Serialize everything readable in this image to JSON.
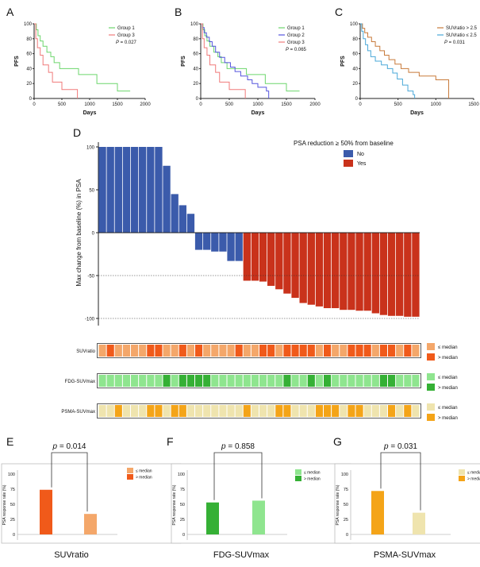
{
  "chart_data": [
    {
      "panel": "A",
      "type": "line",
      "xlabel": "Days",
      "ylabel": "PFS",
      "xlim": [
        0,
        2000
      ],
      "ylim": [
        0,
        100
      ],
      "xticks": [
        0,
        500,
        1000,
        1500,
        2000
      ],
      "yticks": [
        0,
        20,
        40,
        60,
        80,
        100
      ],
      "annotation": "P = 0.027",
      "legend_position": "top-right",
      "series": [
        {
          "name": "Group 1",
          "color": "#6cd66c",
          "x": [
            0,
            40,
            70,
            110,
            160,
            230,
            300,
            360,
            460,
            800,
            1130,
            1500,
            1730
          ],
          "y": [
            100,
            92,
            84,
            77,
            70,
            62,
            56,
            48,
            40,
            32,
            20,
            10,
            10
          ]
        },
        {
          "name": "Group 3",
          "color": "#f07a7a",
          "x": [
            0,
            30,
            60,
            110,
            160,
            260,
            330,
            500,
            740,
            780
          ],
          "y": [
            100,
            80,
            68,
            58,
            45,
            35,
            22,
            12,
            12,
            0
          ]
        }
      ]
    },
    {
      "panel": "B",
      "type": "line",
      "xlabel": "Days",
      "ylabel": "PFS",
      "xlim": [
        0,
        2000
      ],
      "ylim": [
        0,
        100
      ],
      "xticks": [
        0,
        500,
        1000,
        1500,
        2000
      ],
      "yticks": [
        0,
        20,
        40,
        60,
        80,
        100
      ],
      "annotation": "P = 0.065",
      "legend_position": "top-right",
      "series": [
        {
          "name": "Group 1",
          "color": "#6cd66c",
          "x": [
            0,
            40,
            70,
            110,
            160,
            230,
            300,
            360,
            460,
            800,
            1130,
            1500,
            1730
          ],
          "y": [
            100,
            92,
            84,
            77,
            70,
            62,
            56,
            48,
            40,
            32,
            20,
            10,
            10
          ]
        },
        {
          "name": "Group 2",
          "color": "#5555dd",
          "x": [
            0,
            30,
            60,
            100,
            150,
            200,
            260,
            330,
            420,
            520,
            600,
            700,
            820,
            900,
            1000,
            1150,
            1190
          ],
          "y": [
            100,
            95,
            88,
            82,
            76,
            70,
            62,
            55,
            48,
            42,
            36,
            30,
            25,
            20,
            15,
            10,
            0
          ]
        },
        {
          "name": "Group 3",
          "color": "#f07a7a",
          "x": [
            0,
            30,
            60,
            110,
            160,
            260,
            330,
            500,
            740,
            780
          ],
          "y": [
            100,
            80,
            68,
            58,
            45,
            35,
            22,
            12,
            12,
            0
          ]
        }
      ]
    },
    {
      "panel": "C",
      "type": "line",
      "xlabel": "Days",
      "ylabel": "PFS",
      "xlim": [
        0,
        1500
      ],
      "ylim": [
        0,
        100
      ],
      "xticks": [
        0,
        500,
        1000,
        1500
      ],
      "yticks": [
        0,
        20,
        40,
        60,
        80,
        100
      ],
      "annotation": "P = 0.031",
      "legend_position": "top-right",
      "series": [
        {
          "name": "SUVratio > 2.5",
          "color": "#c87a3a",
          "x": [
            0,
            30,
            60,
            100,
            150,
            200,
            260,
            320,
            380,
            460,
            540,
            640,
            780,
            1000,
            1160,
            1170
          ],
          "y": [
            100,
            94,
            88,
            82,
            76,
            70,
            64,
            58,
            52,
            46,
            40,
            35,
            30,
            25,
            25,
            0
          ]
        },
        {
          "name": "SUVratio ≤ 2.5",
          "color": "#4aa8d8",
          "x": [
            0,
            20,
            40,
            70,
            100,
            140,
            200,
            280,
            360,
            430,
            490,
            560,
            630,
            700,
            720
          ],
          "y": [
            100,
            90,
            80,
            72,
            64,
            56,
            50,
            45,
            40,
            34,
            26,
            18,
            10,
            5,
            0
          ]
        }
      ]
    },
    {
      "panel": "D",
      "type": "bar",
      "ylabel": "Max change from baseline (%) in PSA",
      "ylim": [
        -100,
        100
      ],
      "yticks": [
        -100,
        -50,
        0,
        50,
        100
      ],
      "reference_lines": [
        -50,
        -100
      ],
      "legend_title": "PSA reduction ≥ 50% from baseline",
      "legend_position": "top-right",
      "legend": [
        {
          "name": "No",
          "color": "#3b5bab"
        },
        {
          "name": "Yes",
          "color": "#c9321b"
        }
      ],
      "values": [
        100,
        100,
        100,
        100,
        100,
        100,
        100,
        100,
        78,
        45,
        32,
        22,
        -20,
        -20,
        -22,
        -22,
        -33,
        -33,
        -56,
        -56,
        -57,
        -62,
        -66,
        -71,
        -76,
        -82,
        -84,
        -86,
        -88,
        -88,
        -90,
        -90,
        -91,
        -91,
        -94,
        -96,
        -97,
        -97,
        -98,
        -98
      ],
      "groups": [
        "No",
        "No",
        "No",
        "No",
        "No",
        "No",
        "No",
        "No",
        "No",
        "No",
        "No",
        "No",
        "No",
        "No",
        "No",
        "No",
        "No",
        "No",
        "Yes",
        "Yes",
        "Yes",
        "Yes",
        "Yes",
        "Yes",
        "Yes",
        "Yes",
        "Yes",
        "Yes",
        "Yes",
        "Yes",
        "Yes",
        "Yes",
        "Yes",
        "Yes",
        "Yes",
        "Yes",
        "Yes",
        "Yes",
        "Yes",
        "Yes"
      ]
    },
    {
      "type": "heatmap",
      "legend": [
        "≤ median",
        "> median"
      ],
      "rows": [
        {
          "name": "SUVratio",
          "colors": [
            "#f4a76a",
            "#f05a1a"
          ],
          "cells": [
            0,
            1,
            0,
            0,
            0,
            0,
            1,
            1,
            0,
            0,
            1,
            0,
            1,
            0,
            0,
            0,
            0,
            1,
            0,
            0,
            1,
            1,
            0,
            1,
            1,
            1,
            1,
            0,
            1,
            0,
            0,
            1,
            1,
            1,
            0,
            1,
            1,
            0,
            1,
            0
          ]
        },
        {
          "name": "FDG-SUVmax",
          "colors": [
            "#8fe58f",
            "#35b035"
          ],
          "cells": [
            0,
            0,
            0,
            0,
            0,
            0,
            0,
            0,
            1,
            0,
            1,
            1,
            1,
            1,
            0,
            0,
            0,
            0,
            0,
            0,
            0,
            0,
            0,
            1,
            0,
            0,
            1,
            0,
            1,
            0,
            0,
            0,
            0,
            0,
            0,
            1,
            1,
            0,
            0,
            0
          ]
        },
        {
          "name": "PSMA-SUVmax",
          "colors": [
            "#efe4ae",
            "#f4a418"
          ],
          "cells": [
            0,
            0,
            1,
            0,
            0,
            0,
            1,
            1,
            0,
            1,
            1,
            0,
            0,
            0,
            0,
            0,
            0,
            0,
            1,
            0,
            0,
            0,
            1,
            1,
            0,
            0,
            0,
            1,
            1,
            1,
            0,
            1,
            1,
            0,
            0,
            0,
            1,
            0,
            1,
            0
          ]
        }
      ]
    },
    {
      "panel": "E",
      "type": "bar",
      "xlabel": "SUVratio",
      "ylabel": "PSA response rate (%)",
      "ylim": [
        0,
        100
      ],
      "yticks": [
        0,
        25,
        50,
        75,
        100
      ],
      "annotation": "p = 0.014",
      "legend": [
        "≤ median",
        "> median"
      ],
      "series": [
        {
          "name": "> median",
          "value": 74,
          "color": "#f05a1a"
        },
        {
          "name": "≤ median",
          "value": 34,
          "color": "#f4a76a"
        }
      ]
    },
    {
      "panel": "F",
      "type": "bar",
      "xlabel": "FDG-SUVmax",
      "ylabel": "PSA response rate (%)",
      "ylim": [
        0,
        100
      ],
      "yticks": [
        0,
        25,
        50,
        75,
        100
      ],
      "annotation": "p = 0.858",
      "legend": [
        "≤ median",
        "> median"
      ],
      "series": [
        {
          "name": "> median",
          "value": 53,
          "color": "#35b035"
        },
        {
          "name": "≤ median",
          "value": 56,
          "color": "#8fe58f"
        }
      ]
    },
    {
      "panel": "G",
      "type": "bar",
      "xlabel": "PSMA-SUVmax",
      "ylabel": "PSA response rate (%)",
      "ylim": [
        0,
        100
      ],
      "yticks": [
        0,
        25,
        50,
        75,
        100
      ],
      "annotation": "p = 0.031",
      "legend": [
        "≤ median",
        "> median"
      ],
      "series": [
        {
          "name": "> median",
          "value": 72,
          "color": "#f4a418"
        },
        {
          "name": "≤ median",
          "value": 36,
          "color": "#efe4ae"
        }
      ]
    }
  ]
}
